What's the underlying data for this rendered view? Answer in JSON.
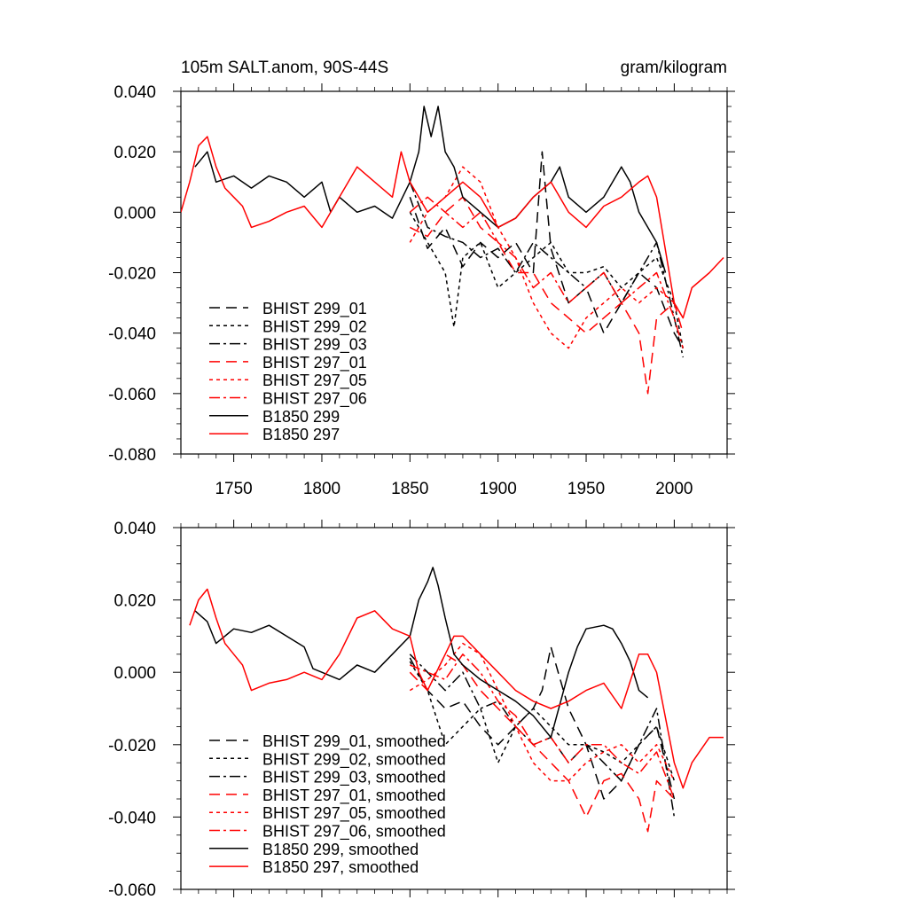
{
  "figure": {
    "title_left": "105m SALT.anom, 90S-44S",
    "title_right": "gram/kilogram"
  },
  "chart_data": [
    {
      "type": "line",
      "title": "105m SALT.anom, 90S-44S",
      "units": "gram/kilogram",
      "xlim": [
        1720,
        2030
      ],
      "ylim": [
        -0.08,
        0.04
      ],
      "x_ticks": [
        1750,
        1800,
        1850,
        1900,
        1950,
        2000
      ],
      "x_tick_labels": [
        "1750",
        "1800",
        "1850",
        "1900",
        "1950",
        "2000"
      ],
      "y_ticks": [
        0.04,
        0.02,
        0.0,
        -0.02,
        -0.04,
        -0.06,
        -0.08
      ],
      "y_tick_labels": [
        "0.040",
        "0.020",
        "0.000",
        "-0.020",
        "-0.040",
        "-0.060",
        "-0.080"
      ],
      "grid": false,
      "legend_position": "lower-left",
      "series": [
        {
          "name": "BHIST 299_01",
          "color": "#000000",
          "dash": "long-dash",
          "x": [
            1850,
            1860,
            1870,
            1880,
            1890,
            1900,
            1910,
            1920,
            1925,
            1930,
            1940,
            1950,
            1960,
            1970,
            1980,
            1990,
            2000,
            2005
          ],
          "y": [
            0.005,
            -0.012,
            -0.005,
            -0.018,
            -0.01,
            -0.015,
            -0.01,
            -0.02,
            0.02,
            -0.012,
            -0.03,
            -0.025,
            -0.04,
            -0.03,
            -0.02,
            -0.025,
            -0.04,
            -0.045
          ]
        },
        {
          "name": "BHIST 299_02",
          "color": "#000000",
          "dash": "short-dash",
          "x": [
            1850,
            1860,
            1870,
            1875,
            1880,
            1890,
            1900,
            1910,
            1920,
            1930,
            1940,
            1950,
            1960,
            1970,
            1980,
            1990,
            2000,
            2005
          ],
          "y": [
            0.0,
            -0.01,
            -0.02,
            -0.038,
            -0.015,
            -0.01,
            -0.025,
            -0.02,
            -0.015,
            -0.01,
            -0.02,
            -0.02,
            -0.018,
            -0.025,
            -0.02,
            -0.015,
            -0.03,
            -0.045
          ]
        },
        {
          "name": "BHIST 299_03",
          "color": "#000000",
          "dash": "dash-dot",
          "x": [
            1850,
            1860,
            1870,
            1880,
            1890,
            1900,
            1910,
            1920,
            1930,
            1940,
            1950,
            1960,
            1970,
            1980,
            1990,
            2000,
            2005
          ],
          "y": [
            0.01,
            -0.005,
            -0.008,
            -0.01,
            -0.015,
            -0.012,
            -0.02,
            -0.01,
            -0.015,
            -0.02,
            -0.025,
            -0.02,
            -0.03,
            -0.02,
            -0.01,
            -0.035,
            -0.048
          ]
        },
        {
          "name": "BHIST 297_01",
          "color": "#ff0000",
          "dash": "long-dash",
          "x": [
            1850,
            1860,
            1870,
            1880,
            1890,
            1900,
            1910,
            1920,
            1930,
            1940,
            1950,
            1960,
            1970,
            1980,
            1985,
            1990,
            2000,
            2005
          ],
          "y": [
            -0.005,
            -0.008,
            0.0,
            0.005,
            -0.005,
            -0.01,
            -0.02,
            -0.02,
            -0.03,
            -0.035,
            -0.04,
            -0.035,
            -0.03,
            -0.04,
            -0.06,
            -0.035,
            -0.03,
            -0.04
          ]
        },
        {
          "name": "BHIST 297_05",
          "color": "#ff0000",
          "dash": "short-dash",
          "x": [
            1850,
            1860,
            1870,
            1880,
            1890,
            1900,
            1910,
            1920,
            1930,
            1940,
            1950,
            1960,
            1970,
            1980,
            1990,
            2000,
            2005
          ],
          "y": [
            -0.01,
            0.0,
            0.005,
            0.015,
            0.01,
            -0.005,
            -0.015,
            -0.03,
            -0.04,
            -0.045,
            -0.035,
            -0.03,
            -0.025,
            -0.03,
            -0.025,
            -0.03,
            -0.035
          ]
        },
        {
          "name": "BHIST 297_06",
          "color": "#ff0000",
          "dash": "dash-dot",
          "x": [
            1850,
            1860,
            1870,
            1880,
            1890,
            1900,
            1910,
            1920,
            1930,
            1940,
            1950,
            1960,
            1970,
            1980,
            1990,
            2000,
            2005
          ],
          "y": [
            0.0,
            0.005,
            0.0,
            -0.005,
            0.0,
            -0.01,
            -0.015,
            -0.025,
            -0.02,
            -0.03,
            -0.025,
            -0.02,
            -0.03,
            -0.025,
            -0.02,
            -0.035,
            -0.045
          ]
        },
        {
          "name": "B1850 299",
          "color": "#000000",
          "dash": "solid",
          "x": [
            1728,
            1735,
            1740,
            1750,
            1760,
            1770,
            1780,
            1790,
            1800,
            1805,
            1810,
            1820,
            1830,
            1840,
            1850,
            1855,
            1858,
            1862,
            1866,
            1870,
            1875,
            1880,
            1890,
            1900,
            1910,
            1920,
            1930,
            1935,
            1940,
            1950,
            1960,
            1970,
            1975,
            1980,
            1990,
            1995
          ],
          "y": [
            0.015,
            0.02,
            0.01,
            0.012,
            0.008,
            0.012,
            0.01,
            0.005,
            0.01,
            0.0,
            0.005,
            0.0,
            0.002,
            -0.002,
            0.01,
            0.02,
            0.035,
            0.025,
            0.035,
            0.02,
            0.015,
            0.005,
            0.0,
            -0.005,
            -0.002,
            0.005,
            0.01,
            0.015,
            0.005,
            0.0,
            0.005,
            0.015,
            0.01,
            0.0,
            -0.01,
            -0.02
          ]
        },
        {
          "name": "B1850 297",
          "color": "#ff0000",
          "dash": "solid",
          "x": [
            1720,
            1725,
            1730,
            1735,
            1740,
            1745,
            1750,
            1755,
            1760,
            1770,
            1780,
            1790,
            1800,
            1810,
            1820,
            1830,
            1840,
            1845,
            1850,
            1860,
            1870,
            1880,
            1890,
            1900,
            1910,
            1920,
            1930,
            1940,
            1950,
            1960,
            1970,
            1980,
            1985,
            1990,
            2000,
            2005,
            2010,
            2020,
            2028
          ],
          "y": [
            0.0,
            0.01,
            0.022,
            0.025,
            0.015,
            0.008,
            0.005,
            0.002,
            -0.005,
            -0.003,
            0.0,
            0.002,
            -0.005,
            0.005,
            0.015,
            0.01,
            0.005,
            0.02,
            0.01,
            0.0,
            0.005,
            0.01,
            0.005,
            -0.005,
            -0.002,
            0.005,
            0.01,
            0.0,
            -0.005,
            0.002,
            0.005,
            0.01,
            0.012,
            0.005,
            -0.03,
            -0.035,
            -0.025,
            -0.02,
            -0.015
          ]
        }
      ]
    },
    {
      "type": "line",
      "xlim": [
        1720,
        2030
      ],
      "ylim": [
        -0.06,
        0.04
      ],
      "x_ticks": [
        1750,
        1800,
        1850,
        1900,
        1950,
        2000
      ],
      "y_ticks": [
        0.04,
        0.02,
        0.0,
        -0.02,
        -0.04,
        -0.06
      ],
      "y_tick_labels": [
        "0.040",
        "0.020",
        "0.000",
        "-0.020",
        "-0.040",
        "-0.060"
      ],
      "grid": false,
      "legend_position": "lower-left",
      "series": [
        {
          "name": "BHIST 299_01, smoothed",
          "color": "#000000",
          "dash": "long-dash",
          "x": [
            1850,
            1860,
            1870,
            1880,
            1890,
            1900,
            1910,
            1920,
            1925,
            1930,
            1940,
            1950,
            1960,
            1970,
            1980,
            1990,
            2000
          ],
          "y": [
            0.004,
            -0.005,
            -0.01,
            -0.008,
            -0.015,
            -0.02,
            -0.015,
            -0.01,
            -0.005,
            0.007,
            -0.01,
            -0.02,
            -0.035,
            -0.03,
            -0.02,
            -0.015,
            -0.035
          ]
        },
        {
          "name": "BHIST 299_02, smoothed",
          "color": "#000000",
          "dash": "short-dash",
          "x": [
            1850,
            1860,
            1870,
            1880,
            1890,
            1900,
            1910,
            1920,
            1930,
            1940,
            1950,
            1960,
            1970,
            1980,
            1990,
            2000
          ],
          "y": [
            0.003,
            -0.005,
            -0.02,
            -0.015,
            -0.01,
            -0.025,
            -0.015,
            -0.01,
            -0.015,
            -0.02,
            -0.02,
            -0.022,
            -0.025,
            -0.02,
            -0.015,
            -0.03
          ]
        },
        {
          "name": "BHIST 299_03, smoothed",
          "color": "#000000",
          "dash": "dash-dot",
          "x": [
            1850,
            1860,
            1870,
            1880,
            1890,
            1900,
            1910,
            1920,
            1930,
            1940,
            1950,
            1960,
            1970,
            1980,
            1990,
            2000
          ],
          "y": [
            0.005,
            0.0,
            -0.005,
            0.0,
            -0.01,
            -0.008,
            -0.015,
            -0.02,
            -0.018,
            -0.025,
            -0.02,
            -0.025,
            -0.03,
            -0.02,
            -0.01,
            -0.04
          ]
        },
        {
          "name": "BHIST 297_01, smoothed",
          "color": "#ff0000",
          "dash": "long-dash",
          "x": [
            1850,
            1860,
            1870,
            1880,
            1890,
            1900,
            1910,
            1920,
            1930,
            1940,
            1950,
            1960,
            1970,
            1980,
            1985,
            1990,
            2000
          ],
          "y": [
            0.0,
            -0.005,
            0.005,
            0.002,
            -0.005,
            -0.01,
            -0.015,
            -0.02,
            -0.025,
            -0.03,
            -0.04,
            -0.03,
            -0.028,
            -0.035,
            -0.044,
            -0.03,
            -0.035
          ]
        },
        {
          "name": "BHIST 297_05, smoothed",
          "color": "#ff0000",
          "dash": "short-dash",
          "x": [
            1850,
            1860,
            1870,
            1880,
            1890,
            1900,
            1910,
            1920,
            1930,
            1940,
            1950,
            1960,
            1970,
            1980,
            1990,
            2000
          ],
          "y": [
            -0.005,
            -0.002,
            0.002,
            0.008,
            0.005,
            -0.005,
            -0.015,
            -0.025,
            -0.03,
            -0.03,
            -0.025,
            -0.022,
            -0.02,
            -0.025,
            -0.02,
            -0.03
          ]
        },
        {
          "name": "BHIST 297_06, smoothed",
          "color": "#ff0000",
          "dash": "dash-dot",
          "x": [
            1850,
            1860,
            1870,
            1880,
            1890,
            1900,
            1910,
            1920,
            1930,
            1940,
            1950,
            1960,
            1970,
            1980,
            1990,
            2000
          ],
          "y": [
            0.002,
            0.0,
            -0.002,
            0.005,
            0.0,
            -0.008,
            -0.012,
            -0.02,
            -0.018,
            -0.025,
            -0.02,
            -0.02,
            -0.025,
            -0.028,
            -0.022,
            -0.035
          ]
        },
        {
          "name": "B1850 299, smoothed",
          "color": "#000000",
          "dash": "solid",
          "x": [
            1728,
            1735,
            1740,
            1750,
            1760,
            1770,
            1780,
            1790,
            1795,
            1800,
            1810,
            1820,
            1830,
            1840,
            1850,
            1855,
            1860,
            1863,
            1866,
            1870,
            1875,
            1880,
            1890,
            1900,
            1910,
            1920,
            1930,
            1940,
            1945,
            1950,
            1960,
            1965,
            1970,
            1975,
            1980,
            1985
          ],
          "y": [
            0.017,
            0.014,
            0.008,
            0.012,
            0.011,
            0.013,
            0.01,
            0.007,
            0.001,
            0.0,
            -0.002,
            0.002,
            0.0,
            0.005,
            0.01,
            0.02,
            0.025,
            0.029,
            0.024,
            0.015,
            0.005,
            0.002,
            -0.002,
            -0.005,
            -0.008,
            -0.012,
            -0.018,
            0.0,
            0.007,
            0.012,
            0.013,
            0.012,
            0.008,
            0.003,
            -0.005,
            -0.007
          ]
        },
        {
          "name": "B1850 297, smoothed",
          "color": "#ff0000",
          "dash": "solid",
          "x": [
            1725,
            1730,
            1735,
            1740,
            1745,
            1750,
            1755,
            1760,
            1770,
            1780,
            1790,
            1800,
            1810,
            1820,
            1830,
            1840,
            1850,
            1855,
            1860,
            1870,
            1875,
            1880,
            1890,
            1900,
            1910,
            1920,
            1930,
            1940,
            1950,
            1960,
            1970,
            1980,
            1985,
            1990,
            2000,
            2005,
            2010,
            2020,
            2028
          ],
          "y": [
            0.013,
            0.02,
            0.023,
            0.015,
            0.008,
            0.005,
            0.002,
            -0.005,
            -0.003,
            -0.002,
            0.0,
            -0.002,
            0.005,
            0.015,
            0.017,
            0.012,
            0.01,
            0.0,
            -0.005,
            0.005,
            0.01,
            0.01,
            0.005,
            0.0,
            -0.005,
            -0.008,
            -0.01,
            -0.008,
            -0.005,
            -0.003,
            -0.01,
            0.005,
            0.005,
            0.0,
            -0.025,
            -0.032,
            -0.025,
            -0.018,
            -0.018
          ]
        }
      ]
    }
  ]
}
